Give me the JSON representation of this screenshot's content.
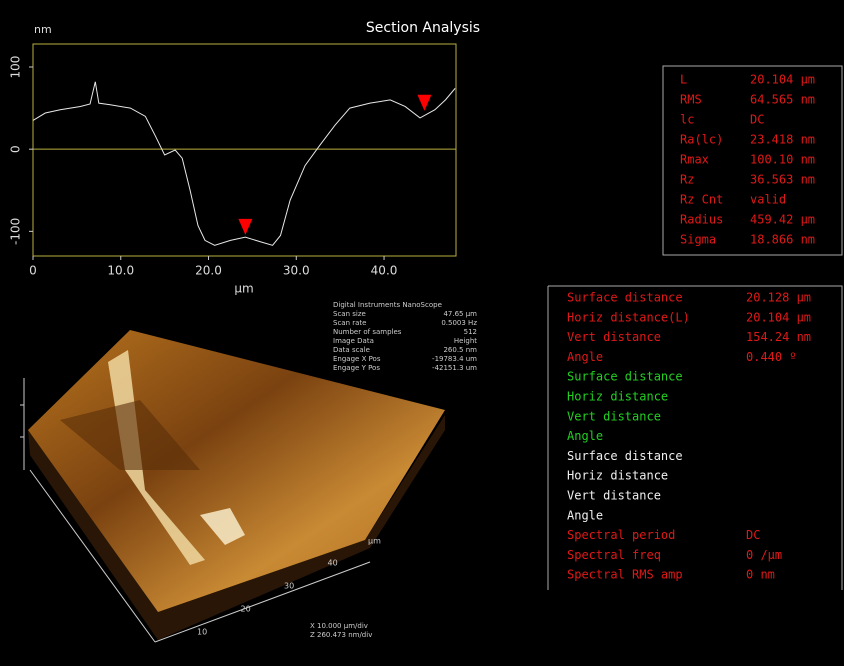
{
  "chart_data": {
    "type": "line",
    "title": "Section Analysis",
    "y_label": "nm",
    "x_label": "µm",
    "x": [
      0,
      1.4,
      3.1,
      5.4,
      6.5,
      7.1,
      7.5,
      8.8,
      11.1,
      12.8,
      13.9,
      15.0,
      16.2,
      17.0,
      17.9,
      18.8,
      19.6,
      20.7,
      22.5,
      24.2,
      26.0,
      27.3,
      28.2,
      29.3,
      31.0,
      32.7,
      34.4,
      36.1,
      38.4,
      40.7,
      42.4,
      44.1,
      45.8,
      47.0,
      48.1
    ],
    "series": [
      {
        "color": "#e8e8e8",
        "values": [
          35,
          44,
          48,
          52,
          55,
          82,
          56,
          54,
          50,
          40,
          17,
          -7,
          -1,
          -11,
          -50,
          -93,
          -111,
          -117,
          -111,
          -107,
          -113,
          -117,
          -105,
          -62,
          -20,
          5,
          29,
          50,
          56,
          60,
          52,
          38,
          48,
          60,
          74
        ]
      }
    ],
    "cursors": [
      {
        "x": 24.2,
        "y": -97
      },
      {
        "x": 44.6,
        "y": 54
      }
    ],
    "cursor_color": "#ff0000",
    "xlim": [
      0,
      48.2
    ],
    "ylim": [
      -130,
      128
    ],
    "xticks": [
      0,
      {
        "value": 10,
        "label": "10.0"
      },
      {
        "value": 20,
        "label": "20.0"
      },
      {
        "value": 30,
        "label": "30.0"
      },
      {
        "value": 40,
        "label": "40.0"
      }
    ],
    "yticks": [
      100,
      0,
      -100
    ],
    "frame_color": "#b8b040"
  },
  "stats": [
    [
      "L",
      "20.104 µm"
    ],
    [
      "RMS",
      "64.565 nm"
    ],
    [
      "lc",
      "DC"
    ],
    [
      "Ra(lc)",
      "23.418 nm"
    ],
    [
      "Rmax",
      "100.10 nm"
    ],
    [
      "Rz",
      "36.563 nm"
    ],
    [
      "Rz Cnt",
      "valid"
    ],
    [
      "Radius",
      "459.42 µm"
    ],
    [
      "Sigma",
      "18.866 nm"
    ]
  ],
  "measurements": [
    {
      "label": "Surface distance",
      "value": "20.128 µm",
      "color": "red"
    },
    {
      "label": "Horiz distance(L)",
      "value": "20.104 µm",
      "color": "red"
    },
    {
      "label": "Vert distance",
      "value": "154.24 nm",
      "color": "red"
    },
    {
      "label": "Angle",
      "value": "0.440 º",
      "color": "red"
    },
    {
      "label": "Surface distance",
      "color": "green"
    },
    {
      "label": "Horiz distance",
      "color": "green"
    },
    {
      "label": "Vert distance",
      "color": "green"
    },
    {
      "label": "Angle",
      "color": "green"
    },
    {
      "label": "Surface distance",
      "color": "white"
    },
    {
      "label": "Horiz distance",
      "color": "white"
    },
    {
      "label": "Vert distance",
      "color": "white"
    },
    {
      "label": "Angle",
      "color": "white"
    },
    {
      "label": "Spectral period",
      "value": "DC",
      "color": "red"
    },
    {
      "label": "Spectral freq",
      "value": "0 /µm",
      "color": "red"
    },
    {
      "label": "Spectral RMS amp",
      "value": "0 nm",
      "color": "red"
    }
  ],
  "metadata": {
    "header": "Digital Instruments NanoScope",
    "rows": [
      [
        "Scan size",
        "47.65 µm"
      ],
      [
        "Scan rate",
        "0.5003 Hz"
      ],
      [
        "Number of samples",
        "512"
      ],
      [
        "Image Data",
        "Height"
      ],
      [
        "Data scale",
        "260.5 nm"
      ],
      [
        "Engage X Pos",
        "-19783.4 um"
      ],
      [
        "Engage Y Pos",
        "-42151.3 um"
      ]
    ]
  },
  "image": {
    "axis_unit": "µm",
    "axis_labels": [
      "10",
      "20",
      "30",
      "40"
    ],
    "scale": [
      "X  10.000 µm/div",
      "Z  260.473 nm/div"
    ]
  }
}
